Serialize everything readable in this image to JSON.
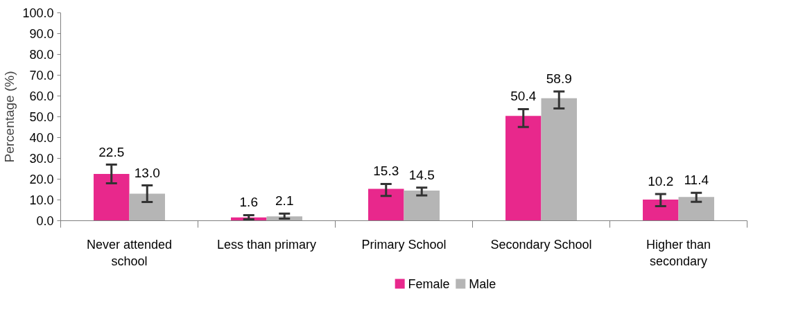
{
  "chart_data": {
    "type": "bar",
    "ylabel": "Percentage (%)",
    "categories": [
      "Never attended school",
      "Less than primary",
      "Primary School",
      "Secondary School",
      "Higher than secondary"
    ],
    "series": [
      {
        "name": "Female",
        "color": "#e8288c",
        "values": [
          22.5,
          1.6,
          15.3,
          50.4,
          10.2
        ],
        "value_labels": [
          "22.5",
          "1.6",
          "15.3",
          "50.4",
          "10.2"
        ],
        "errors": [
          [
            18,
            27
          ],
          [
            0.7,
            2.7
          ],
          [
            11.9,
            17.7
          ],
          [
            45.1,
            53.7
          ],
          [
            7.0,
            12.8
          ]
        ]
      },
      {
        "name": "Male",
        "color": "#b5b5b5",
        "values": [
          13.0,
          2.1,
          14.5,
          58.9,
          11.4
        ],
        "value_labels": [
          "13.0",
          "2.1",
          "14.5",
          "58.9",
          "11.4"
        ],
        "errors": [
          [
            9,
            17
          ],
          [
            1.0,
            3.4
          ],
          [
            12.2,
            15.9
          ],
          [
            54,
            62.2
          ],
          [
            9.1,
            13.4
          ]
        ]
      }
    ],
    "ylim": [
      0,
      100
    ],
    "yticks": [
      {
        "value": 0,
        "label": "0.0"
      },
      {
        "value": 10,
        "label": "10.0"
      },
      {
        "value": 20,
        "label": "20.0"
      },
      {
        "value": 30,
        "label": "30.0"
      },
      {
        "value": 40,
        "label": "40.0"
      },
      {
        "value": 50,
        "label": "50.0"
      },
      {
        "value": 60,
        "label": "60.0"
      },
      {
        "value": 70,
        "label": "70.0"
      },
      {
        "value": 80,
        "label": "80.0"
      },
      {
        "value": 90,
        "label": "90.0"
      },
      {
        "value": 100,
        "label": "100.0"
      }
    ],
    "grid": false,
    "legend": "bottom"
  }
}
